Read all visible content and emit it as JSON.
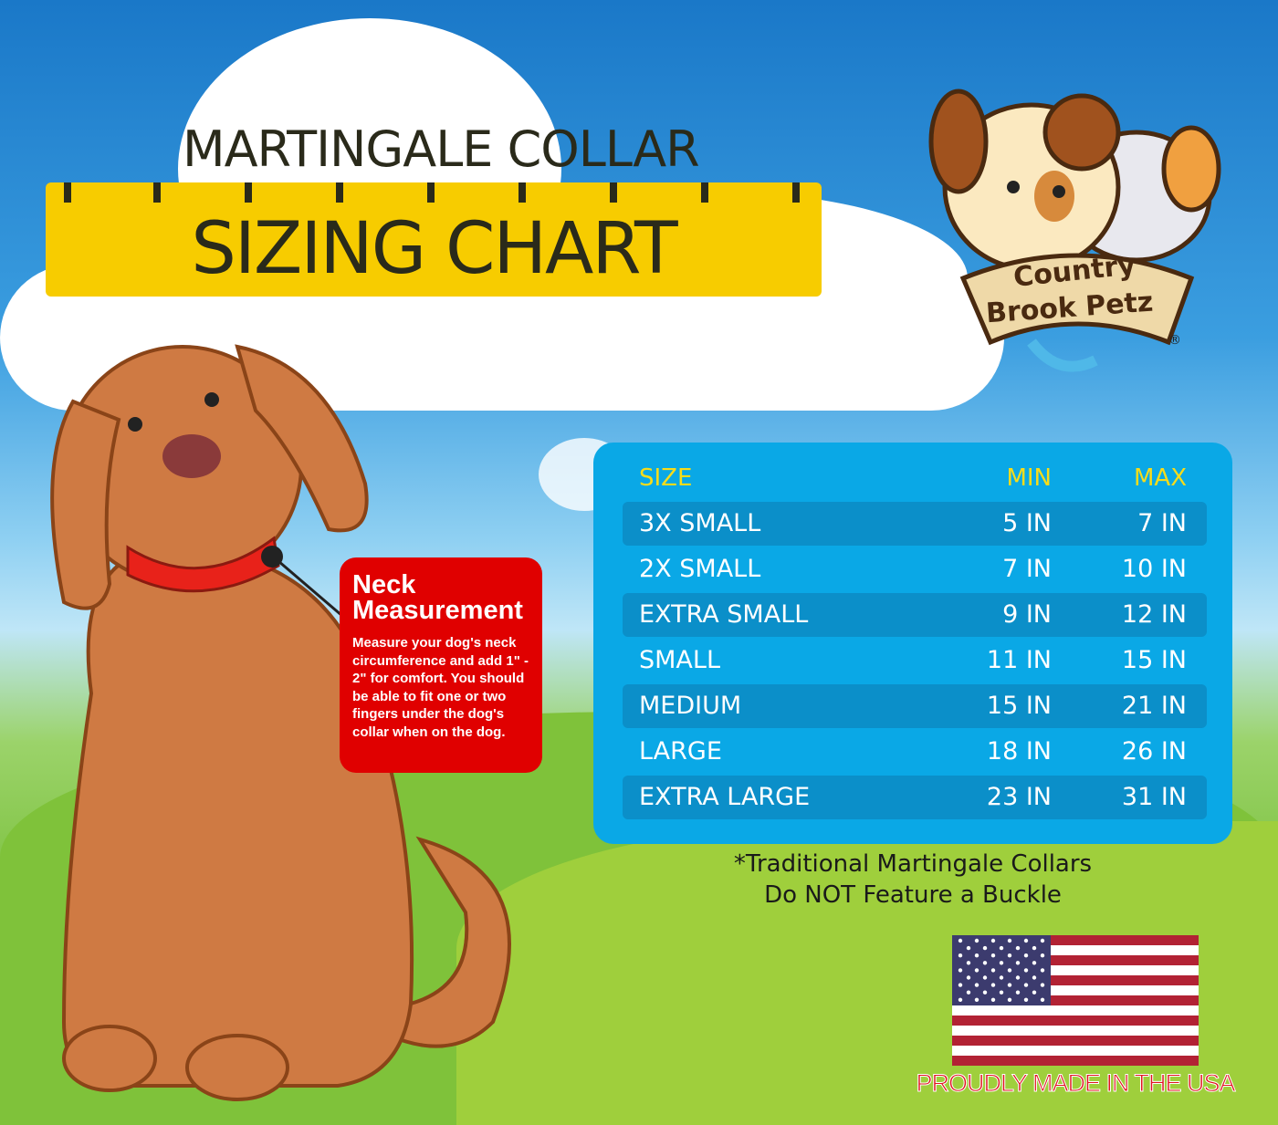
{
  "header": {
    "title_line1": "MARTINGALE COLLAR",
    "title_line2": "SIZING CHART"
  },
  "logo": {
    "text_line1": "Country",
    "text_line2": "Brook Petz",
    "registered": "®"
  },
  "table": {
    "headers": {
      "size": "SIZE",
      "min": "MIN",
      "max": "MAX"
    },
    "rows": [
      {
        "size": "3X SMALL",
        "min": "5 IN",
        "max": "7 IN"
      },
      {
        "size": "2X SMALL",
        "min": "7 IN",
        "max": "10 IN"
      },
      {
        "size": "EXTRA SMALL",
        "min": "9 IN",
        "max": "12 IN"
      },
      {
        "size": "SMALL",
        "min": "11 IN",
        "max": "15 IN"
      },
      {
        "size": "MEDIUM",
        "min": "15 IN",
        "max": "21 IN"
      },
      {
        "size": "LARGE",
        "min": "18 IN",
        "max": "26 IN"
      },
      {
        "size": "EXTRA LARGE",
        "min": "23 IN",
        "max": "31 IN"
      }
    ]
  },
  "neck_box": {
    "title": "Neck Measurement",
    "body": "Measure your dog's neck circumference and add 1\" - 2\" for comfort. You should be able to fit one or two fingers under the dog's collar when on the dog."
  },
  "note": {
    "line1": "*Traditional Martingale Collars",
    "line2": "Do NOT Feature a Buckle"
  },
  "footer": {
    "made_in": "PROUDLY MADE IN THE USA"
  },
  "colors": {
    "ruler": "#f7cc00",
    "panel": "#0aa8e6",
    "stripe": "#0b8fc9",
    "header_text": "#f7dc1a",
    "neck_box": "#e00000",
    "made_in": "#e0141e"
  }
}
